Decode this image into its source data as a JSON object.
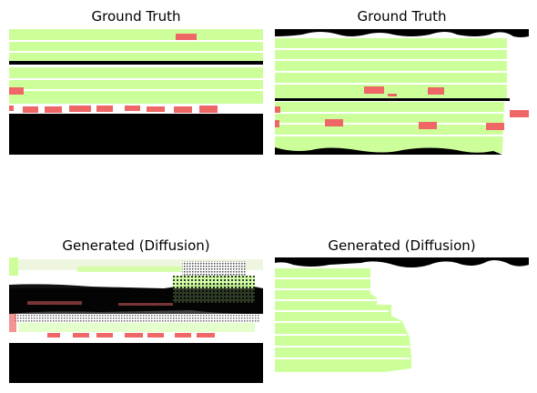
{
  "figure": {
    "panels": [
      {
        "id": "gt-1",
        "title": "Ground Truth"
      },
      {
        "id": "gt-2",
        "title": "Ground Truth"
      },
      {
        "id": "gen-1",
        "title": "Generated (Diffusion)"
      },
      {
        "id": "gen-2",
        "title": "Generated (Diffusion)"
      }
    ],
    "colors": {
      "lane": "#ccff99",
      "vehicle": "#ee6666",
      "road_boundary": "#000000",
      "background": "#ffffff"
    }
  }
}
